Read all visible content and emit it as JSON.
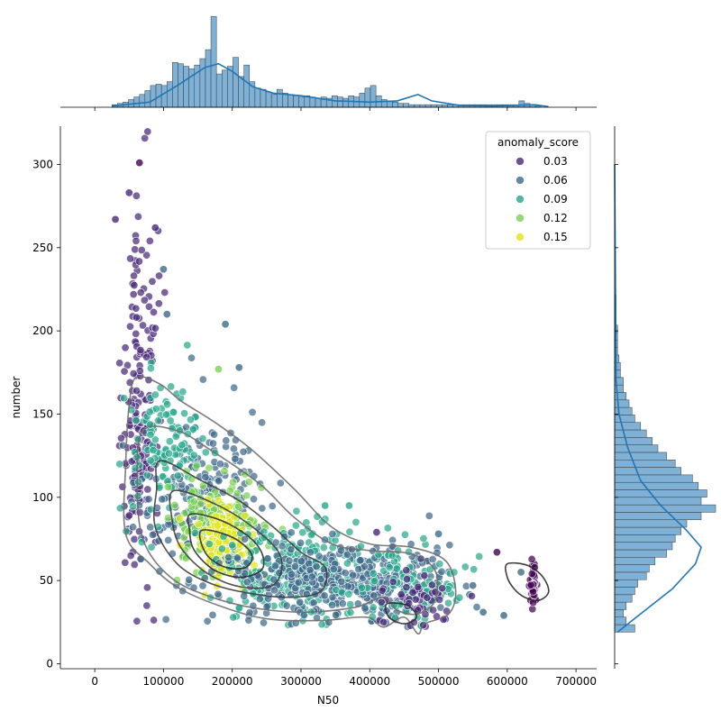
{
  "chart_data": {
    "type": "scatter",
    "subtype": "jointplot",
    "xlabel": "N50",
    "ylabel": "number",
    "xlim": [
      -50000,
      730000
    ],
    "ylim": [
      -3,
      323
    ],
    "xticks": [
      0,
      100000,
      200000,
      300000,
      400000,
      500000,
      600000,
      700000
    ],
    "xtick_labels": [
      "0",
      "100000",
      "200000",
      "300000",
      "400000",
      "500000",
      "600000",
      "700000"
    ],
    "yticks": [
      0,
      50,
      100,
      150,
      200,
      250,
      300
    ],
    "ytick_labels": [
      "0",
      "50",
      "100",
      "150",
      "200",
      "250",
      "300"
    ],
    "grid": false,
    "hue": {
      "title": "anomaly_score",
      "palette": "viridis",
      "levels": [
        {
          "label": "0.03",
          "color": "#482878"
        },
        {
          "label": "0.06",
          "color": "#3e6a8a"
        },
        {
          "label": "0.09",
          "color": "#26a88a"
        },
        {
          "label": "0.12",
          "color": "#7ad151"
        },
        {
          "label": "0.15",
          "color": "#e2e418"
        }
      ]
    },
    "legend_location": "upper right",
    "scatter_clusters": [
      {
        "x": 65000,
        "y": 130,
        "sx": 12000,
        "sy": 45,
        "n": 140,
        "color": "#482878"
      },
      {
        "x": 70000,
        "y": 215,
        "sx": 12000,
        "sy": 35,
        "n": 45,
        "color": "#482878"
      },
      {
        "x": 150000,
        "y": 100,
        "sx": 45000,
        "sy": 22,
        "n": 200,
        "color": "#3e6a8a"
      },
      {
        "x": 100000,
        "y": 130,
        "sx": 30000,
        "sy": 20,
        "n": 120,
        "color": "#26a88a"
      },
      {
        "x": 180000,
        "y": 80,
        "sx": 35000,
        "sy": 14,
        "n": 180,
        "color": "#7ad151"
      },
      {
        "x": 185000,
        "y": 75,
        "sx": 22000,
        "sy": 10,
        "n": 120,
        "color": "#e2e418"
      },
      {
        "x": 290000,
        "y": 55,
        "sx": 55000,
        "sy": 14,
        "n": 230,
        "color": "#26a88a"
      },
      {
        "x": 300000,
        "y": 50,
        "sx": 60000,
        "sy": 12,
        "n": 180,
        "color": "#3e6a8a"
      },
      {
        "x": 420000,
        "y": 48,
        "sx": 50000,
        "sy": 12,
        "n": 200,
        "color": "#3e6a8a"
      },
      {
        "x": 450000,
        "y": 45,
        "sx": 45000,
        "sy": 12,
        "n": 110,
        "color": "#26a88a"
      },
      {
        "x": 470000,
        "y": 40,
        "sx": 25000,
        "sy": 10,
        "n": 50,
        "color": "#482878"
      },
      {
        "x": 638000,
        "y": 48,
        "sx": 2500,
        "sy": 7,
        "n": 40,
        "color": "#440154"
      }
    ],
    "scatter_outliers": [
      {
        "x": 65000,
        "y": 301,
        "color": "#440154"
      },
      {
        "x": 50000,
        "y": 283,
        "color": "#482878"
      },
      {
        "x": 30000,
        "y": 267,
        "color": "#482878"
      },
      {
        "x": 88000,
        "y": 262,
        "color": "#482878"
      },
      {
        "x": 190000,
        "y": 204,
        "color": "#3e6a8a"
      },
      {
        "x": 210000,
        "y": 178,
        "color": "#3e6a8a"
      },
      {
        "x": 180000,
        "y": 177,
        "color": "#7ad151"
      },
      {
        "x": 100000,
        "y": 237,
        "color": "#3e6a8a"
      },
      {
        "x": 105000,
        "y": 210,
        "color": "#3e6a8a"
      },
      {
        "x": 585000,
        "y": 67,
        "color": "#440154"
      },
      {
        "x": 595000,
        "y": 29,
        "color": "#3e6a8a"
      },
      {
        "x": 565000,
        "y": 31,
        "color": "#3e6a8a"
      },
      {
        "x": 550000,
        "y": 47,
        "color": "#3e6a8a"
      },
      {
        "x": 500000,
        "y": 78,
        "color": "#3e6a8a"
      },
      {
        "x": 410000,
        "y": 79,
        "color": "#482878"
      },
      {
        "x": 335000,
        "y": 95,
        "color": "#26a88a"
      },
      {
        "x": 370000,
        "y": 95,
        "color": "#26a88a"
      },
      {
        "x": 620000,
        "y": 55,
        "color": "#3e6a8a"
      }
    ],
    "kde_contours": [
      [
        [
          60000,
          172
        ],
        [
          95000,
          168
        ],
        [
          125000,
          158
        ],
        [
          175000,
          145
        ],
        [
          230000,
          128
        ],
        [
          290000,
          105
        ],
        [
          345000,
          82
        ],
        [
          400000,
          72
        ],
        [
          460000,
          70
        ],
        [
          510000,
          62
        ],
        [
          525000,
          44
        ],
        [
          515000,
          30
        ],
        [
          480000,
          24
        ],
        [
          470000,
          18
        ],
        [
          450000,
          28
        ],
        [
          420000,
          22
        ],
        [
          395000,
          28
        ],
        [
          330000,
          26
        ],
        [
          250000,
          27
        ],
        [
          180000,
          35
        ],
        [
          120000,
          46
        ],
        [
          80000,
          60
        ],
        [
          45000,
          78
        ],
        [
          45000,
          120
        ],
        [
          50000,
          155
        ],
        [
          60000,
          172
        ]
      ],
      [
        [
          70000,
          140
        ],
        [
          120000,
          140
        ],
        [
          170000,
          128
        ],
        [
          240000,
          108
        ],
        [
          290000,
          88
        ],
        [
          345000,
          72
        ],
        [
          400000,
          68
        ],
        [
          460000,
          66
        ],
        [
          495000,
          56
        ],
        [
          495000,
          38
        ],
        [
          470000,
          30
        ],
        [
          440000,
          32
        ],
        [
          420000,
          40
        ],
        [
          380000,
          34
        ],
        [
          310000,
          31
        ],
        [
          240000,
          33
        ],
        [
          170000,
          40
        ],
        [
          110000,
          52
        ],
        [
          70000,
          75
        ],
        [
          62000,
          110
        ],
        [
          70000,
          140
        ]
      ],
      [
        [
          95000,
          122
        ],
        [
          155000,
          110
        ],
        [
          210000,
          98
        ],
        [
          260000,
          82
        ],
        [
          300000,
          67
        ],
        [
          335000,
          58
        ],
        [
          330000,
          44
        ],
        [
          290000,
          40
        ],
        [
          230000,
          42
        ],
        [
          170000,
          48
        ],
        [
          120000,
          60
        ],
        [
          88000,
          82
        ],
        [
          90000,
          105
        ],
        [
          95000,
          122
        ]
      ],
      [
        [
          115000,
          104
        ],
        [
          175000,
          96
        ],
        [
          230000,
          82
        ],
        [
          270000,
          65
        ],
        [
          262000,
          48
        ],
        [
          215000,
          46
        ],
        [
          165000,
          54
        ],
        [
          125000,
          70
        ],
        [
          112000,
          88
        ],
        [
          115000,
          104
        ]
      ],
      [
        [
          140000,
          90
        ],
        [
          190000,
          85
        ],
        [
          235000,
          72
        ],
        [
          245000,
          58
        ],
        [
          215000,
          52
        ],
        [
          175000,
          56
        ],
        [
          145000,
          68
        ],
        [
          138000,
          80
        ],
        [
          140000,
          90
        ]
      ],
      [
        [
          155000,
          80
        ],
        [
          200000,
          76
        ],
        [
          228000,
          66
        ],
        [
          220000,
          58
        ],
        [
          190000,
          58
        ],
        [
          162000,
          66
        ],
        [
          155000,
          80
        ]
      ],
      [
        [
          600000,
          60
        ],
        [
          630000,
          59
        ],
        [
          652000,
          52
        ],
        [
          660000,
          43
        ],
        [
          645000,
          38
        ],
        [
          625000,
          40
        ],
        [
          610000,
          45
        ],
        [
          600000,
          52
        ],
        [
          600000,
          60
        ]
      ],
      [
        [
          425000,
          36
        ],
        [
          455000,
          35
        ],
        [
          468000,
          28
        ],
        [
          450000,
          24
        ],
        [
          428000,
          28
        ],
        [
          425000,
          36
        ]
      ]
    ],
    "x_histogram": {
      "bin_start": 25000,
      "bin_width": 8000,
      "counts": [
        4,
        6,
        8,
        12,
        16,
        20,
        26,
        34,
        36,
        34,
        40,
        70,
        68,
        64,
        60,
        66,
        76,
        90,
        142,
        52,
        58,
        64,
        78,
        48,
        66,
        40,
        30,
        28,
        24,
        20,
        28,
        22,
        20,
        18,
        16,
        18,
        16,
        14,
        16,
        14,
        18,
        16,
        14,
        18,
        16,
        22,
        30,
        34,
        18,
        12,
        10,
        8,
        6,
        6,
        4,
        4,
        4,
        4,
        4,
        4,
        4,
        4,
        4,
        4,
        4,
        4,
        4,
        4,
        4,
        4,
        4,
        4,
        4,
        4,
        10,
        6,
        4,
        2
      ],
      "kde": [
        [
          25000,
          2
        ],
        [
          80000,
          8
        ],
        [
          120000,
          34
        ],
        [
          160000,
          62
        ],
        [
          180000,
          68
        ],
        [
          200000,
          56
        ],
        [
          230000,
          32
        ],
        [
          260000,
          22
        ],
        [
          300000,
          18
        ],
        [
          350000,
          10
        ],
        [
          400000,
          8
        ],
        [
          440000,
          10
        ],
        [
          470000,
          20
        ],
        [
          490000,
          10
        ],
        [
          530000,
          3
        ],
        [
          580000,
          2
        ],
        [
          640000,
          4
        ],
        [
          660000,
          1
        ]
      ]
    },
    "y_histogram": {
      "bin_start": 19,
      "bin_width": 4.5,
      "counts": [
        14,
        8,
        6,
        8,
        12,
        14,
        16,
        22,
        24,
        28,
        36,
        40,
        42,
        46,
        50,
        60,
        70,
        60,
        64,
        58,
        54,
        46,
        42,
        36,
        30,
        26,
        22,
        18,
        14,
        12,
        10,
        8,
        6,
        6,
        4,
        4,
        3,
        2,
        2,
        2,
        2,
        1,
        1,
        1,
        1
      ],
      "kde": [
        [
          19,
          2
        ],
        [
          30,
          18
        ],
        [
          45,
          40
        ],
        [
          60,
          56
        ],
        [
          70,
          60
        ],
        [
          80,
          50
        ],
        [
          95,
          32
        ],
        [
          110,
          18
        ],
        [
          130,
          9
        ],
        [
          150,
          3
        ],
        [
          170,
          1
        ],
        [
          300,
          0
        ]
      ]
    }
  }
}
